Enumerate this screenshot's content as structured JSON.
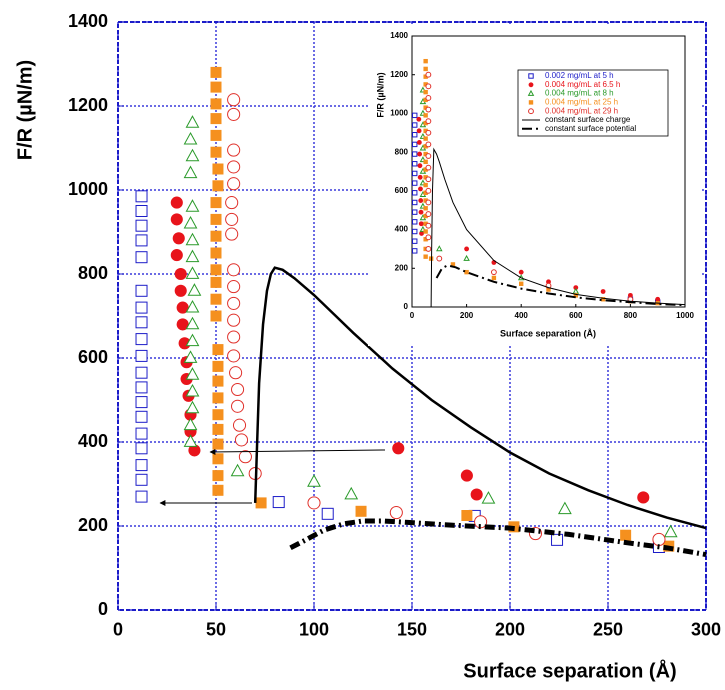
{
  "chart_data": [
    {
      "type": "scatter",
      "x_label": "Surface separation (Å)",
      "y_label": "F/R (µN/m)",
      "xlim": [
        0,
        300
      ],
      "ylim": [
        0,
        1400
      ],
      "xticks": [
        0,
        50,
        100,
        150,
        200,
        250,
        300
      ],
      "yticks": [
        0,
        200,
        400,
        600,
        800,
        1000,
        1200,
        1400
      ],
      "grid": true,
      "series": [
        {
          "color": "#1c1cc8",
          "marker": "square-open",
          "x": [
            12,
            12,
            12,
            12,
            12,
            12,
            12,
            12,
            12,
            12,
            12,
            12,
            12,
            12,
            12,
            12,
            12,
            12,
            12,
            82,
            107,
            182,
            224,
            276
          ],
          "values": [
            985,
            950,
            915,
            880,
            840,
            760,
            720,
            685,
            645,
            605,
            565,
            530,
            495,
            460,
            420,
            385,
            345,
            310,
            270,
            257,
            229,
            224,
            167,
            150
          ]
        },
        {
          "color": "#e8141b",
          "marker": "circle",
          "x": [
            30,
            30,
            31,
            30,
            32,
            32,
            33,
            33,
            34,
            35,
            35,
            36,
            37,
            37,
            39,
            143,
            178,
            183,
            268
          ],
          "values": [
            970,
            930,
            885,
            845,
            800,
            760,
            720,
            680,
            635,
            590,
            550,
            510,
            465,
            425,
            380,
            385,
            320,
            275,
            268
          ]
        },
        {
          "color": "#2a9a2a",
          "marker": "triangle-open",
          "x": [
            38,
            37,
            38,
            37,
            38,
            37,
            38,
            38,
            38,
            39,
            38,
            38,
            38,
            37,
            38,
            38,
            38,
            37,
            37,
            61,
            100,
            119,
            189,
            228,
            282
          ],
          "values": [
            1160,
            1120,
            1080,
            1040,
            960,
            920,
            880,
            840,
            800,
            760,
            720,
            680,
            640,
            600,
            560,
            520,
            480,
            440,
            400,
            330,
            305,
            275,
            265,
            240,
            185
          ]
        },
        {
          "color": "#f5901e",
          "marker": "square",
          "x": [
            50,
            50,
            50,
            50,
            50,
            50,
            51,
            51,
            50,
            50,
            50,
            50,
            50,
            50,
            50,
            50,
            51,
            51,
            51,
            51,
            51,
            51,
            51,
            51,
            51,
            51,
            73,
            124,
            178,
            202,
            259,
            281
          ],
          "values": [
            1280,
            1245,
            1205,
            1170,
            1130,
            1090,
            1050,
            1010,
            970,
            930,
            890,
            850,
            810,
            780,
            740,
            700,
            620,
            580,
            545,
            505,
            465,
            430,
            395,
            360,
            320,
            285,
            255,
            235,
            225,
            198,
            178,
            152
          ]
        },
        {
          "color": "#e0302a",
          "marker": "circle-open",
          "x": [
            59,
            59,
            59,
            59,
            59,
            58,
            58,
            58,
            59,
            59,
            59,
            59,
            59,
            59,
            60,
            61,
            61,
            62,
            63,
            65,
            70,
            100,
            142,
            185,
            213,
            276
          ],
          "values": [
            1215,
            1180,
            1095,
            1055,
            1015,
            970,
            930,
            895,
            810,
            770,
            730,
            690,
            650,
            605,
            565,
            525,
            485,
            440,
            405,
            365,
            325,
            255,
            232,
            210,
            182,
            168
          ]
        },
        {
          "color": "#000000",
          "line": "solid",
          "x": [
            70,
            71,
            72,
            74,
            76,
            78,
            80,
            84,
            90,
            100,
            110,
            120,
            140,
            160,
            180,
            200,
            220,
            240,
            260,
            280,
            300
          ],
          "values": [
            255,
            400,
            540,
            680,
            760,
            800,
            815,
            810,
            790,
            750,
            705,
            660,
            575,
            500,
            435,
            375,
            325,
            285,
            250,
            220,
            195
          ]
        },
        {
          "color": "#000000",
          "line": "dashdot",
          "x": [
            88,
            95,
            105,
            115,
            125,
            135,
            150,
            170,
            200,
            230,
            260,
            280,
            300
          ],
          "values": [
            148,
            165,
            190,
            205,
            212,
            212,
            208,
            202,
            195,
            180,
            160,
            148,
            132
          ]
        }
      ]
    },
    {
      "type": "scatter",
      "x_label": "Surface separation (Å)",
      "y_label": "F/R (µN/m)",
      "xlim": [
        0,
        1000
      ],
      "ylim": [
        0,
        1400
      ],
      "xticks": [
        0,
        200,
        400,
        600,
        800,
        1000
      ],
      "yticks": [
        0,
        200,
        400,
        600,
        800,
        1000,
        1200,
        1400
      ],
      "grid": false,
      "series": [
        {
          "name": "0.002 mg/mL at 5 h",
          "color": "#1c1cc8",
          "marker": "square-open",
          "x": [
            10,
            10,
            10,
            10,
            10,
            10,
            10,
            10,
            10,
            10,
            10,
            10,
            10,
            10,
            10,
            800,
            900
          ],
          "values": [
            990,
            940,
            890,
            840,
            790,
            740,
            690,
            640,
            590,
            540,
            490,
            440,
            390,
            340,
            290,
            40,
            25
          ]
        },
        {
          "name": "0.004 mg/mL at 6.5 h",
          "color": "#e8141b",
          "marker": "circle",
          "x": [
            25,
            26,
            27,
            28,
            29,
            30,
            31,
            32,
            33,
            34,
            35,
            200,
            300,
            400,
            500,
            600,
            700,
            800,
            900
          ],
          "values": [
            970,
            910,
            850,
            790,
            730,
            670,
            610,
            550,
            490,
            430,
            380,
            300,
            230,
            180,
            130,
            100,
            80,
            60,
            40
          ]
        },
        {
          "name": "0.004 mg/mL at 8 h",
          "color": "#2a9a2a",
          "marker": "triangle-open",
          "x": [
            40,
            40,
            40,
            40,
            40,
            40,
            40,
            40,
            40,
            40,
            40,
            40,
            40,
            100,
            200,
            400,
            600
          ],
          "values": [
            1120,
            1060,
            1000,
            940,
            880,
            820,
            760,
            700,
            640,
            580,
            520,
            460,
            400,
            300,
            250,
            150,
            80
          ]
        },
        {
          "name": "0.004 mg/mL at 25 h",
          "color": "#f5901e",
          "marker": "square",
          "x": [
            50,
            50,
            50,
            50,
            50,
            50,
            50,
            50,
            50,
            50,
            50,
            50,
            50,
            50,
            50,
            50,
            50,
            50,
            50,
            50,
            50,
            50,
            50,
            50,
            50,
            50,
            70,
            150,
            200,
            300,
            400,
            500,
            600,
            700,
            800,
            900
          ],
          "values": [
            1270,
            1230,
            1190,
            1150,
            1110,
            1070,
            1030,
            990,
            950,
            910,
            870,
            830,
            790,
            750,
            710,
            670,
            630,
            590,
            550,
            510,
            470,
            430,
            390,
            350,
            300,
            260,
            250,
            220,
            180,
            150,
            120,
            90,
            60,
            40,
            30,
            20
          ]
        },
        {
          "name": "0.004 mg/mL at 29 h",
          "color": "#e0302a",
          "marker": "circle-open",
          "x": [
            60,
            60,
            60,
            60,
            60,
            60,
            60,
            60,
            60,
            60,
            60,
            60,
            60,
            60,
            60,
            60,
            100,
            300,
            500,
            800
          ],
          "values": [
            1200,
            1140,
            1080,
            1020,
            960,
            900,
            840,
            780,
            720,
            660,
            600,
            540,
            480,
            420,
            360,
            300,
            250,
            180,
            110,
            40
          ]
        },
        {
          "name": "constant surface charge",
          "color": "#000000",
          "line": "solid",
          "x": [
            70,
            72,
            75,
            80,
            90,
            100,
            120,
            150,
            200,
            300,
            400,
            500,
            600,
            700,
            800,
            900,
            1000
          ],
          "values": [
            0,
            300,
            600,
            815,
            790,
            750,
            660,
            540,
            400,
            240,
            150,
            100,
            65,
            45,
            30,
            20,
            12
          ]
        },
        {
          "name": "constant surface potential",
          "color": "#000000",
          "line": "dashdot",
          "x": [
            90,
            110,
            130,
            160,
            200,
            300,
            400,
            500,
            600,
            700,
            800,
            900,
            1000
          ],
          "values": [
            150,
            200,
            215,
            205,
            180,
            130,
            95,
            70,
            50,
            35,
            25,
            15,
            10
          ]
        }
      ]
    }
  ]
}
